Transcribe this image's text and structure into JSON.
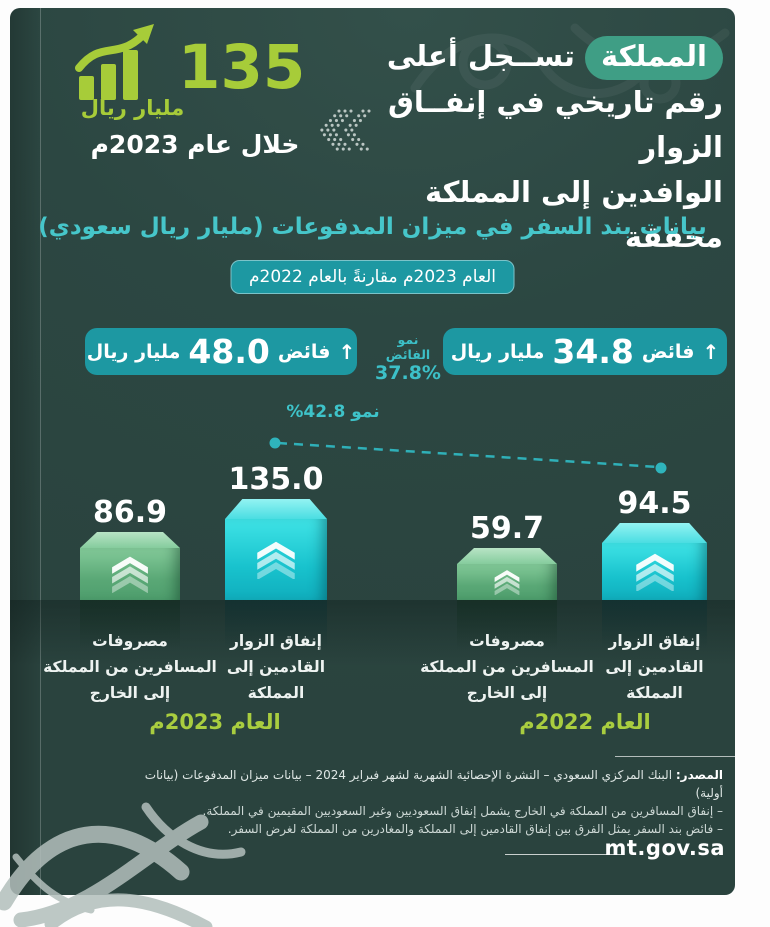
{
  "colors": {
    "card_bg": "#2c4742",
    "accent_lime": "#a7cc39",
    "accent_teal": "#46c6ca",
    "badge_bg": "#1d98a2",
    "highlight_pill": "#3f9e85",
    "bar_teal": "#22d3dc",
    "bar_green": "#6fbe8b"
  },
  "header": {
    "highlight_word": "المملكة",
    "headline_line1_rest": "تســجل أعلى",
    "headline_line2": "رقم تاريخي في إنفــاق الزوار",
    "headline_line3": "الوافدين إلى المملكة محققة",
    "stat_value": "135",
    "stat_unit": "مليار ريال",
    "stat_period": "خلال عام 2023م"
  },
  "section": {
    "title": "بيانات بند السفر في ميزان المدفوعات (مليار ريال سعودي)",
    "compare_pill": "العام 2023م مقارنةً بالعام 2022م"
  },
  "surplus": {
    "arrow_up": "↑",
    "y2023": {
      "prefix": "فائض",
      "value": "48.0",
      "unit": "مليار ريال"
    },
    "growth_label": "نمو الفائض",
    "growth_value": "37.8%",
    "y2022": {
      "prefix": "فائض",
      "value": "34.8",
      "unit": "مليار ريال"
    }
  },
  "chart_data": {
    "type": "bar",
    "title": "بيانات بند السفر في ميزان المدفوعات (مليار ريال سعودي)",
    "subtitle": "العام 2023م مقارنةً بالعام 2022م",
    "unit": "مليار ريال سعودي",
    "grid": false,
    "groups": [
      {
        "year": "العام 2023م",
        "bars": [
          {
            "label": "إنفاق الزوار القادمين إلى المملكة",
            "label_lines": [
              "إنفاق الزوار",
              "القادمين إلى",
              "المملكة"
            ],
            "value": 135.0,
            "value_label": "135.0",
            "color": "#22d3dc"
          },
          {
            "label": "مصروفات المسافرين من المملكة إلى الخارج",
            "label_lines": [
              "مصروفات",
              "المسافرين من المملكة",
              "إلى الخارج"
            ],
            "value": 86.9,
            "value_label": "86.9",
            "color": "#6fbe8b"
          }
        ]
      },
      {
        "year": "العام 2022م",
        "bars": [
          {
            "label": "إنفاق الزوار القادمين إلى المملكة",
            "label_lines": [
              "إنفاق الزوار",
              "القادمين إلى",
              "المملكة"
            ],
            "value": 94.5,
            "value_label": "94.5",
            "color": "#22d3dc"
          },
          {
            "label": "مصروفات المسافرين من المملكة إلى الخارج",
            "label_lines": [
              "مصروفات",
              "المسافرين من المملكة",
              "إلى الخارج"
            ],
            "value": 59.7,
            "value_label": "59.7",
            "color": "#6fbe8b"
          }
        ]
      }
    ],
    "growth_annotation": {
      "text": "نمو 42.8%",
      "from_value": 94.5,
      "to_value": 135.0,
      "growth_pct": 42.8
    },
    "surplus_badges": [
      {
        "year": "2023",
        "text": "فائض 48.0 مليار ريال"
      },
      {
        "year": "2022",
        "text": "فائض 34.8 مليار ريال"
      }
    ],
    "surplus_growth_pct": 37.8
  },
  "footer": {
    "source_label": "المصدر:",
    "source_text": " البنك المركزي السعودي – النشرة الإحصائية الشهرية لشهر فبراير 2024 – بيانات ميزان المدفوعات (بيانات أولية)",
    "note1": "– إنفاق المسافرين من المملكة في الخارج يشمل إنفاق السعوديين وغير السعوديين المقيمين في المملكة.",
    "note2": "– فائض بند السفر يمثل الفرق بين إنفاق القادمين إلى المملكة والمغادرين من المملكة لغرض السفر.",
    "website": "mt.gov.sa"
  }
}
